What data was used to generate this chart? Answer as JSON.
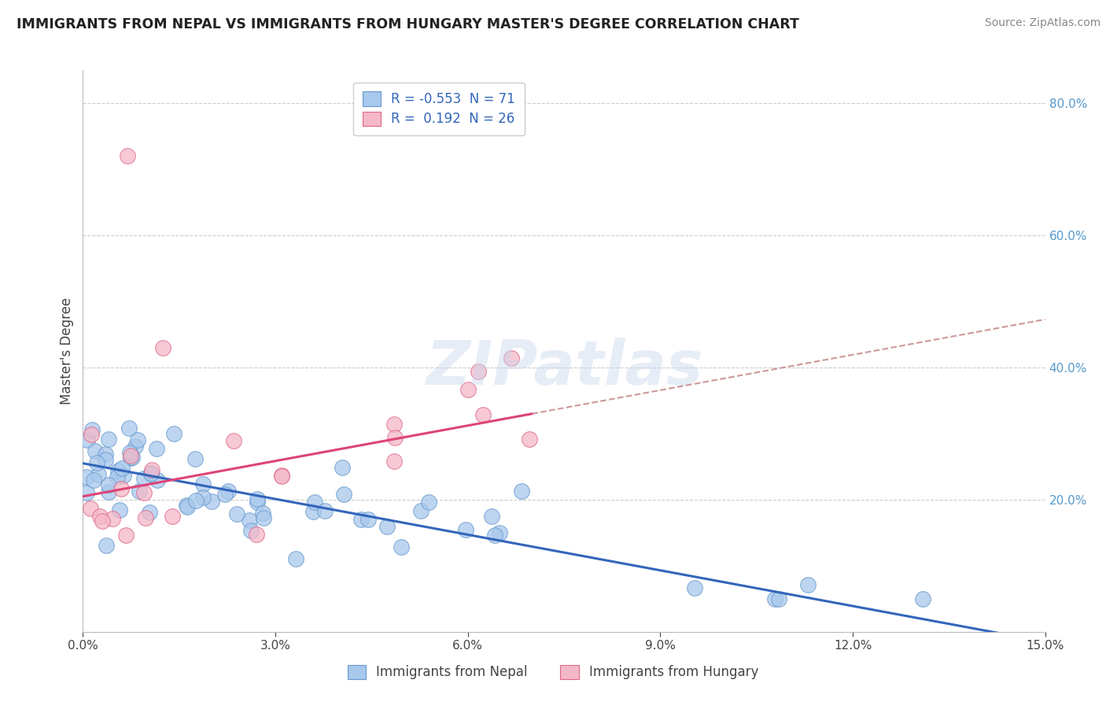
{
  "title": "IMMIGRANTS FROM NEPAL VS IMMIGRANTS FROM HUNGARY MASTER'S DEGREE CORRELATION CHART",
  "source": "Source: ZipAtlas.com",
  "ylabel": "Master's Degree",
  "xlim": [
    0.0,
    15.0
  ],
  "ylim": [
    0.0,
    85.0
  ],
  "x_ticks": [
    0.0,
    3.0,
    6.0,
    9.0,
    12.0,
    15.0
  ],
  "y_ticks_right": [
    20.0,
    40.0,
    60.0,
    80.0
  ],
  "nepal_color": "#A8C8EC",
  "nepal_edge": "#6699CC",
  "hungary_color": "#F5B8C8",
  "hungary_edge": "#DD6688",
  "nepal_R": -0.553,
  "nepal_N": 71,
  "hungary_R": 0.192,
  "hungary_N": 26,
  "nepal_line_color": "#3366BB",
  "hungary_line_color": "#DD4477",
  "hungary_dash_color": "#CC9999",
  "legend_labels": [
    "Immigrants from Nepal",
    "Immigrants from Hungary"
  ],
  "watermark": "ZIPatlas",
  "grid_color": "#CCCCCC",
  "nepal_line_x0": 0.0,
  "nepal_line_y0": 25.5,
  "nepal_line_x1": 15.0,
  "nepal_line_y1": -1.5,
  "hungary_solid_x0": 0.0,
  "hungary_solid_y0": 20.5,
  "hungary_solid_x1": 7.0,
  "hungary_solid_y1": 33.0,
  "hungary_dash_x0": 7.0,
  "hungary_dash_y0": 33.0,
  "hungary_dash_x1": 15.0,
  "hungary_dash_y1": 40.5
}
